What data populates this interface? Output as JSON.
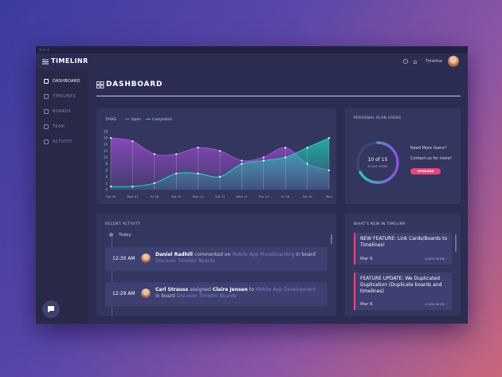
{
  "app": {
    "logo": "TIMELINR",
    "user": "Timeline"
  },
  "sidebar": {
    "active": 0,
    "items": [
      "DASHBOARD",
      "TIMELINES",
      "BOARDS",
      "TEAM",
      "ACTIVITY"
    ]
  },
  "header": {
    "title": "DASHBOARD"
  },
  "chart_data": {
    "type": "area",
    "title": "TASKS",
    "categories": [
      "Tue 06",
      "Wed 07",
      "Fri 08",
      "Sat 10",
      "Mon 12",
      "Tue 13",
      "Wed 14",
      "Thu 15",
      "Fri 16",
      "Sat 16",
      "Mon"
    ],
    "series": [
      {
        "name": "Open",
        "color": "#a24fd6",
        "values": [
          16,
          15,
          11,
          11,
          13,
          12,
          9,
          10,
          13,
          8,
          6
        ]
      },
      {
        "name": "Completed",
        "color": "#1fd1b8",
        "values": [
          1,
          1,
          2,
          5,
          5,
          4,
          8,
          9,
          10,
          13,
          16
        ]
      }
    ],
    "ylim": [
      0,
      18
    ],
    "yticks": [
      0,
      2,
      4,
      6,
      8,
      10,
      12,
      14,
      16,
      18
    ],
    "grid": false,
    "legend": "top"
  },
  "plan": {
    "title": "PERSONAL PLAN USERS",
    "count": "10 of 15",
    "caption": "ACTIVE USERS",
    "question": "Need More Users?",
    "contact": "Contact us for more!",
    "button": "UPGRADE"
  },
  "activity": {
    "title": "RECENT ACTIVITY",
    "day": "Today",
    "items": [
      {
        "time": "12:30 AM",
        "parts": [
          {
            "text": "Daniel Radhill",
            "kind": "name"
          },
          {
            "text": " commented on ",
            "kind": "plain"
          },
          {
            "text": "Mobile App Moodboarding",
            "kind": "link"
          },
          {
            "text": " in board ",
            "kind": "plain"
          },
          {
            "text": "Discover Timelinr Boards",
            "kind": "link"
          }
        ]
      },
      {
        "time": "12:29 AM",
        "parts": [
          {
            "text": "Carl Strauss",
            "kind": "name"
          },
          {
            "text": " assigned ",
            "kind": "plain"
          },
          {
            "text": "Claire Jensen",
            "kind": "name"
          },
          {
            "text": " to ",
            "kind": "plain"
          },
          {
            "text": "Mobile App Development",
            "kind": "link"
          },
          {
            "text": " in board ",
            "kind": "plain"
          },
          {
            "text": "Discover Timelinr Boards",
            "kind": "link"
          }
        ]
      }
    ]
  },
  "news": {
    "title": "WHAT'S NEW IN TIMELINR",
    "items": [
      {
        "title": "NEW FEATURE: Link Cards/Boards to Timelines!",
        "date": "Mar 6",
        "link": "LEARN MORE ›"
      },
      {
        "title": "FEATURE UPDATE: We Duplicated Duplication (Duplicate boards and timelines)",
        "date": "Mar 6",
        "link": "LEARN MORE ›"
      }
    ]
  }
}
